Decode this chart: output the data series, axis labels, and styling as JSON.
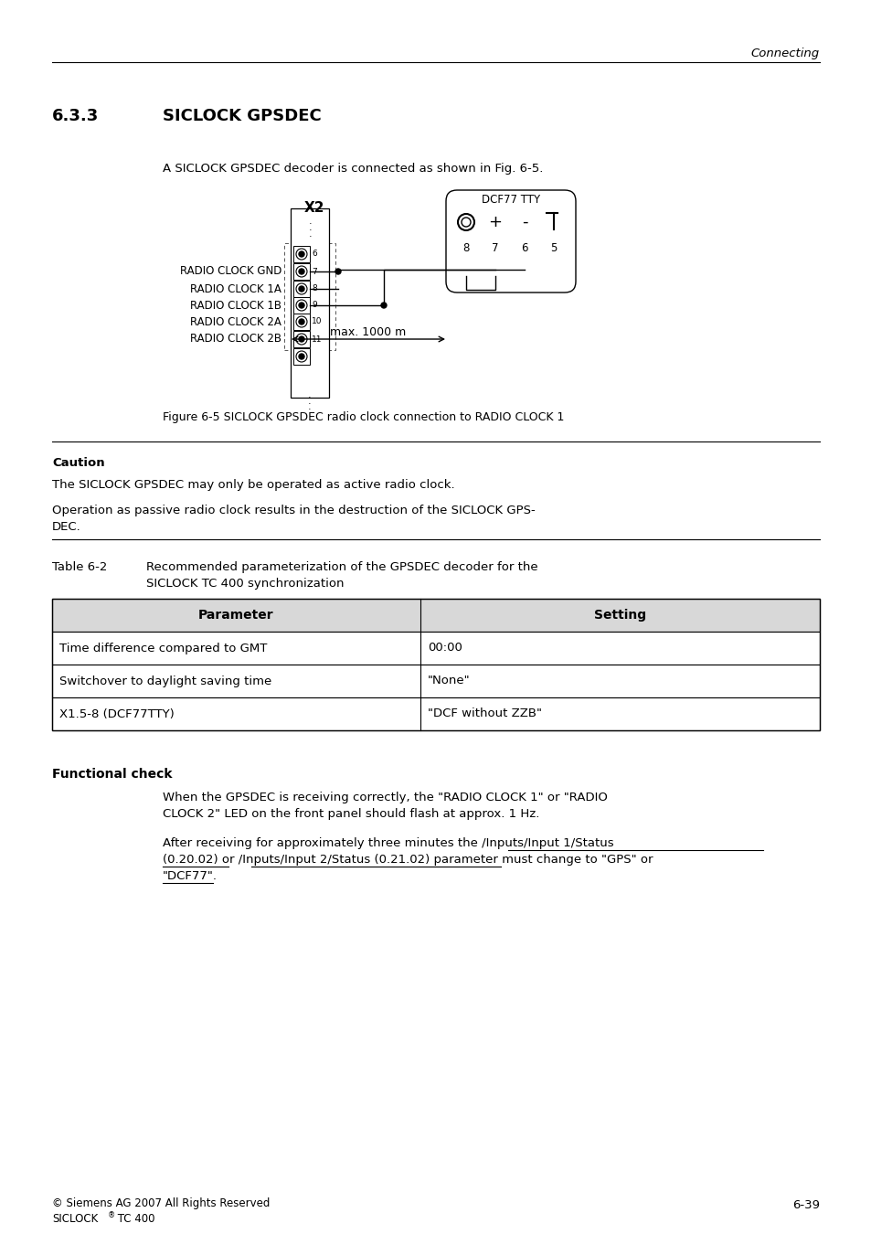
{
  "page_header_right": "Connecting",
  "section_number": "6.3.3",
  "section_title": "SICLOCK GPSDEC",
  "intro_text": "A SICLOCK GPSDEC decoder is connected as shown in Fig. 6-5.",
  "figure_caption": "Figure 6-5 SICLOCK GPSDEC radio clock connection to RADIO CLOCK 1",
  "caution_label": "Caution",
  "caution_text1": "The SICLOCK GPSDEC may only be operated as active radio clock.",
  "caution_text2": "Operation as passive radio clock results in the destruction of the SICLOCK GPS-\nDEC.",
  "table_label": "Table 6-2",
  "table_caption_line1": "Recommended parameterization of the GPSDEC decoder for the",
  "table_caption_line2": "SICLOCK TC 400 synchronization",
  "table_headers": [
    "Parameter",
    "Setting"
  ],
  "table_rows": [
    [
      "Time difference compared to GMT",
      "00:00"
    ],
    [
      "Switchover to daylight saving time",
      "\"None\""
    ],
    [
      "X1.5-8 (DCF77TTY)",
      "\"DCF without ZZB\""
    ]
  ],
  "functional_check_title": "Functional check",
  "footer_left1": "© Siemens AG 2007 All Rights Reserved",
  "footer_right": "6-39",
  "bg_color": "#ffffff",
  "text_color": "#000000"
}
